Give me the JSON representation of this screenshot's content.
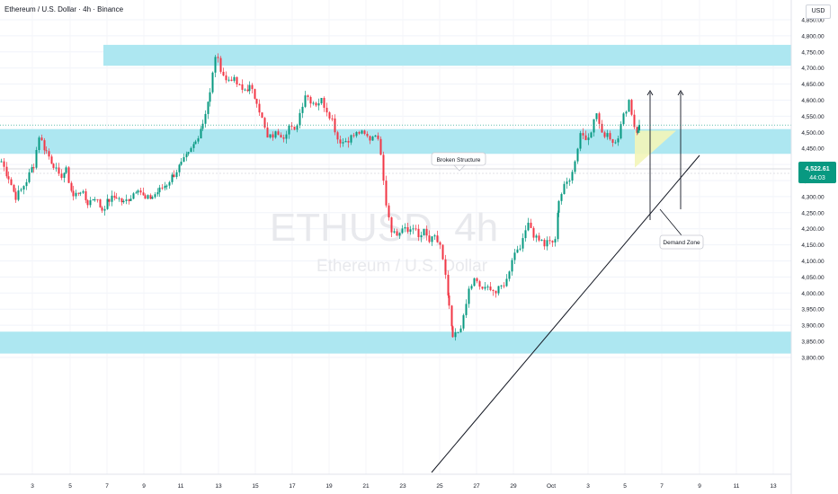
{
  "header": {
    "title": "Ethereum / U.S. Dollar · 4h · Binance",
    "currency_button": "USD"
  },
  "watermark": {
    "symbol": "ETHUSD, 4h",
    "name": "Ethereum / U.S. Dollar"
  },
  "price_tag": {
    "price": "4,522.61",
    "countdown": "44:03"
  },
  "annotations": {
    "broken_structure": "Broken Structure",
    "demand_zone": "Demand Zone"
  },
  "colors": {
    "up": "#089981",
    "down": "#f23645",
    "zone": "#a9e6f0",
    "demand": "#f3f5b8",
    "price_tag": "#089981"
  },
  "chart_data": {
    "type": "candlestick",
    "title": "Ethereum / U.S. Dollar · 4h · Binance",
    "y_axis": {
      "ticks": [
        "4,850.00",
        "4,800.00",
        "4,750.00",
        "4,700.00",
        "4,650.00",
        "4,600.00",
        "4,550.00",
        "4,500.00",
        "4,450.00",
        "4,400.00",
        "4,350.00",
        "4,300.00",
        "4,250.00",
        "4,200.00",
        "4,150.00",
        "4,100.00",
        "4,050.00",
        "4,000.00",
        "3,950.00",
        "3,900.00",
        "3,850.00",
        "3,800.00"
      ],
      "range": [
        3790,
        4890
      ]
    },
    "x_axis": {
      "ticks": [
        "3",
        "5",
        "7",
        "9",
        "11",
        "13",
        "15",
        "17",
        "19",
        "21",
        "23",
        "25",
        "27",
        "29",
        "Oct",
        "3",
        "5",
        "7",
        "9",
        "11",
        "13"
      ]
    },
    "last_price": 4522.61,
    "zones": [
      {
        "from": 4707,
        "to": 4772,
        "type": "resistance"
      },
      {
        "from": 4433,
        "to": 4510,
        "type": "broken-structure"
      },
      {
        "from": 3812,
        "to": 3880,
        "type": "support"
      }
    ],
    "demand_zone": {
      "from": 4390,
      "to": 4505
    },
    "trendline": {
      "from": {
        "x": "Sep 24",
        "y": 3790
      },
      "to": {
        "x": "Oct 9",
        "y": 4560
      }
    },
    "projections": [
      {
        "from": 4420,
        "to": 4700
      },
      {
        "from": 4420,
        "to": 4700
      }
    ],
    "candle_anchors": [
      [
        0,
        4410
      ],
      [
        8,
        4360
      ],
      [
        16,
        4300
      ],
      [
        22,
        4320
      ],
      [
        28,
        4350
      ],
      [
        36,
        4400
      ],
      [
        42,
        4490
      ],
      [
        50,
        4440
      ],
      [
        58,
        4400
      ],
      [
        64,
        4360
      ],
      [
        72,
        4380
      ],
      [
        80,
        4300
      ],
      [
        88,
        4320
      ],
      [
        96,
        4280
      ],
      [
        104,
        4300
      ],
      [
        112,
        4260
      ],
      [
        120,
        4290
      ],
      [
        128,
        4300
      ],
      [
        136,
        4280
      ],
      [
        144,
        4300
      ],
      [
        152,
        4330
      ],
      [
        160,
        4290
      ],
      [
        168,
        4300
      ],
      [
        176,
        4320
      ],
      [
        184,
        4340
      ],
      [
        192,
        4370
      ],
      [
        200,
        4400
      ],
      [
        208,
        4430
      ],
      [
        216,
        4470
      ],
      [
        224,
        4530
      ],
      [
        232,
        4620
      ],
      [
        238,
        4740
      ],
      [
        244,
        4700
      ],
      [
        250,
        4660
      ],
      [
        256,
        4670
      ],
      [
        262,
        4650
      ],
      [
        268,
        4630
      ],
      [
        276,
        4640
      ],
      [
        284,
        4600
      ],
      [
        290,
        4540
      ],
      [
        296,
        4480
      ],
      [
        302,
        4490
      ],
      [
        308,
        4500
      ],
      [
        314,
        4490
      ],
      [
        320,
        4520
      ],
      [
        326,
        4500
      ],
      [
        332,
        4560
      ],
      [
        338,
        4620
      ],
      [
        344,
        4600
      ],
      [
        350,
        4590
      ],
      [
        356,
        4600
      ],
      [
        362,
        4570
      ],
      [
        368,
        4540
      ],
      [
        374,
        4480
      ],
      [
        380,
        4470
      ],
      [
        386,
        4480
      ],
      [
        392,
        4490
      ],
      [
        398,
        4500
      ],
      [
        404,
        4490
      ],
      [
        410,
        4480
      ],
      [
        416,
        4500
      ],
      [
        422,
        4440
      ],
      [
        428,
        4280
      ],
      [
        434,
        4200
      ],
      [
        440,
        4180
      ],
      [
        446,
        4200
      ],
      [
        452,
        4190
      ],
      [
        458,
        4210
      ],
      [
        464,
        4170
      ],
      [
        470,
        4190
      ],
      [
        476,
        4160
      ],
      [
        482,
        4170
      ],
      [
        488,
        4150
      ],
      [
        494,
        4050
      ],
      [
        498,
        3960
      ],
      [
        502,
        3860
      ],
      [
        508,
        3880
      ],
      [
        514,
        3920
      ],
      [
        520,
        4010
      ],
      [
        526,
        4040
      ],
      [
        532,
        4020
      ],
      [
        538,
        4010
      ],
      [
        544,
        4020
      ],
      [
        550,
        4000
      ],
      [
        556,
        4020
      ],
      [
        562,
        4040
      ],
      [
        568,
        4110
      ],
      [
        574,
        4140
      ],
      [
        580,
        4160
      ],
      [
        586,
        4230
      ],
      [
        592,
        4180
      ],
      [
        598,
        4170
      ],
      [
        604,
        4150
      ],
      [
        610,
        4160
      ],
      [
        616,
        4160
      ],
      [
        620,
        4290
      ],
      [
        626,
        4330
      ],
      [
        632,
        4360
      ],
      [
        638,
        4410
      ],
      [
        644,
        4500
      ],
      [
        650,
        4480
      ],
      [
        656,
        4510
      ],
      [
        662,
        4560
      ],
      [
        668,
        4490
      ],
      [
        674,
        4500
      ],
      [
        680,
        4470
      ],
      [
        686,
        4490
      ],
      [
        692,
        4550
      ],
      [
        698,
        4600
      ],
      [
        704,
        4520
      ],
      [
        708,
        4500
      ],
      [
        710,
        4523
      ]
    ]
  }
}
